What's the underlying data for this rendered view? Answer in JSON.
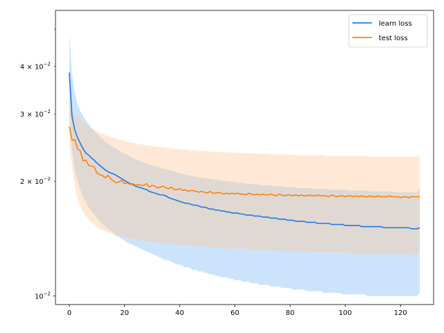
{
  "chart_data": {
    "type": "line",
    "title": "",
    "xlabel": "",
    "ylabel": "",
    "xlim": [
      -5,
      132
    ],
    "ylim": [
      0.0095,
      0.056
    ],
    "yscale": "log",
    "grid": false,
    "legend_position": "top-right",
    "x_ticks": [
      0,
      20,
      40,
      60,
      80,
      100,
      120
    ],
    "x_tick_labels": [
      "0",
      "20",
      "40",
      "60",
      "80",
      "100",
      "120"
    ],
    "y_major_ticks": [
      0.01
    ],
    "y_major_tick_labels": [
      {
        "base": "10",
        "exp": "−2",
        "coef": ""
      }
    ],
    "y_minor_ticks": [
      0.02,
      0.03,
      0.04,
      0.05
    ],
    "y_minor_tick_labels": [
      {
        "coef": "2",
        "base": "10",
        "exp": "−2"
      },
      {
        "coef": "3",
        "base": "10",
        "exp": "−2"
      },
      {
        "coef": "4",
        "base": "10",
        "exp": "−2"
      },
      {
        "coef": "",
        "base": "",
        "exp": ""
      }
    ],
    "x_start": 0,
    "x_step": 1,
    "series": [
      {
        "name": "learn loss",
        "color": "#1f77e4",
        "band_color": "#7fbcf4",
        "mean": [
          0.0385,
          0.0295,
          0.0272,
          0.026,
          0.0251,
          0.0243,
          0.0237,
          0.0234,
          0.023,
          0.0227,
          0.0223,
          0.022,
          0.0217,
          0.0214,
          0.0212,
          0.021,
          0.0209,
          0.0207,
          0.0205,
          0.0203,
          0.0201,
          0.0199,
          0.0197,
          0.0196,
          0.0194,
          0.0193,
          0.0192,
          0.0191,
          0.019,
          0.0188,
          0.0187,
          0.0186,
          0.0185,
          0.0184,
          0.0184,
          0.0183,
          0.0181,
          0.018,
          0.0179,
          0.0178,
          0.0177,
          0.0176,
          0.0175,
          0.0175,
          0.0174,
          0.0173,
          0.0173,
          0.0172,
          0.0171,
          0.0171,
          0.017,
          0.0169,
          0.0169,
          0.0168,
          0.0168,
          0.0167,
          0.0167,
          0.0166,
          0.0166,
          0.0165,
          0.0165,
          0.0165,
          0.0164,
          0.0164,
          0.0163,
          0.0163,
          0.0163,
          0.0162,
          0.0162,
          0.0162,
          0.0161,
          0.0161,
          0.0161,
          0.016,
          0.016,
          0.016,
          0.0159,
          0.0159,
          0.0159,
          0.0158,
          0.0158,
          0.0158,
          0.0157,
          0.0157,
          0.0157,
          0.0157,
          0.0156,
          0.0156,
          0.0156,
          0.0156,
          0.0155,
          0.0155,
          0.0155,
          0.0155,
          0.0155,
          0.0154,
          0.0154,
          0.0154,
          0.0154,
          0.0154,
          0.0153,
          0.0153,
          0.0153,
          0.0153,
          0.0153,
          0.0153,
          0.0152,
          0.0152,
          0.0152,
          0.0152,
          0.0152,
          0.0152,
          0.0152,
          0.0152,
          0.0151,
          0.0151,
          0.0151,
          0.0151,
          0.0151,
          0.0151,
          0.0151,
          0.0151,
          0.0151,
          0.0151,
          0.015,
          0.015,
          0.015,
          0.0151
        ],
        "upper": [
          0.049,
          0.038,
          0.034,
          0.0318,
          0.0305,
          0.0296,
          0.0288,
          0.0282,
          0.0276,
          0.0271,
          0.0266,
          0.0262,
          0.0258,
          0.0254,
          0.0251,
          0.0248,
          0.0246,
          0.0243,
          0.0241,
          0.0238,
          0.0236,
          0.0234,
          0.0232,
          0.023,
          0.0228,
          0.0227,
          0.0225,
          0.0224,
          0.0223,
          0.0221,
          0.022,
          0.0219,
          0.0218,
          0.0217,
          0.0216,
          0.0215,
          0.0214,
          0.0213,
          0.0212,
          0.0211,
          0.021,
          0.0209,
          0.0208,
          0.0207,
          0.0207,
          0.0206,
          0.0205,
          0.0205,
          0.0204,
          0.0204,
          0.0203,
          0.0203,
          0.0202,
          0.0202,
          0.0201,
          0.0201,
          0.02,
          0.02,
          0.0199,
          0.0199,
          0.0199,
          0.0198,
          0.0198,
          0.0198,
          0.0197,
          0.0197,
          0.0197,
          0.0196,
          0.0196,
          0.0196,
          0.0195,
          0.0195,
          0.0195,
          0.0195,
          0.0194,
          0.0194,
          0.0194,
          0.0194,
          0.0193,
          0.0193,
          0.0193,
          0.0193,
          0.0193,
          0.0192,
          0.0192,
          0.0192,
          0.0192,
          0.0192,
          0.0191,
          0.0191,
          0.0191,
          0.0191,
          0.0191,
          0.0191,
          0.019,
          0.019,
          0.019,
          0.019,
          0.019,
          0.019,
          0.019,
          0.0189,
          0.0189,
          0.0189,
          0.0189,
          0.0189,
          0.0189,
          0.0189,
          0.0189,
          0.0188,
          0.0188,
          0.0188,
          0.0188,
          0.0188,
          0.0188,
          0.0188,
          0.0188,
          0.0188,
          0.0187,
          0.0187,
          0.0187,
          0.0187,
          0.0187,
          0.0187,
          0.0187,
          0.0187,
          0.0187,
          0.0192
        ],
        "lower": [
          0.03,
          0.0238,
          0.0214,
          0.02,
          0.019,
          0.0182,
          0.0176,
          0.0171,
          0.0167,
          0.0164,
          0.016,
          0.0157,
          0.0155,
          0.0152,
          0.015,
          0.0148,
          0.0146,
          0.0144,
          0.0143,
          0.0141,
          0.014,
          0.0138,
          0.0137,
          0.0136,
          0.0135,
          0.0134,
          0.0133,
          0.0132,
          0.0131,
          0.013,
          0.0129,
          0.0128,
          0.0127,
          0.0126,
          0.0125,
          0.0124,
          0.0124,
          0.0123,
          0.0122,
          0.0121,
          0.0121,
          0.012,
          0.0119,
          0.0119,
          0.0118,
          0.0117,
          0.0117,
          0.0116,
          0.0116,
          0.0115,
          0.0115,
          0.0114,
          0.0114,
          0.0113,
          0.0113,
          0.0112,
          0.0112,
          0.0112,
          0.0111,
          0.0111,
          0.011,
          0.011,
          0.011,
          0.0109,
          0.0109,
          0.0109,
          0.0108,
          0.0108,
          0.0108,
          0.0107,
          0.0107,
          0.0107,
          0.0107,
          0.0106,
          0.0106,
          0.0106,
          0.0106,
          0.0105,
          0.0105,
          0.0105,
          0.0105,
          0.0104,
          0.0104,
          0.0104,
          0.0104,
          0.0104,
          0.0103,
          0.0103,
          0.0103,
          0.0103,
          0.0103,
          0.0103,
          0.0102,
          0.0102,
          0.0102,
          0.0102,
          0.0102,
          0.0102,
          0.0102,
          0.0101,
          0.0101,
          0.0101,
          0.0101,
          0.0101,
          0.0101,
          0.0101,
          0.0101,
          0.0101,
          0.01,
          0.01,
          0.01,
          0.01,
          0.01,
          0.01,
          0.01,
          0.01,
          0.01,
          0.01,
          0.01,
          0.01,
          0.01,
          0.01,
          0.01,
          0.01,
          0.01,
          0.01,
          0.01,
          0.0102
        ]
      },
      {
        "name": "test loss",
        "color": "#ff7f0e",
        "band_color": "#ffc999",
        "mean": [
          0.0278,
          0.0256,
          0.0257,
          0.0243,
          0.024,
          0.0226,
          0.0227,
          0.022,
          0.0219,
          0.0218,
          0.021,
          0.0208,
          0.0207,
          0.0204,
          0.0207,
          0.0203,
          0.02,
          0.0198,
          0.0199,
          0.0201,
          0.0197,
          0.0198,
          0.0196,
          0.0197,
          0.0195,
          0.0196,
          0.0195,
          0.0195,
          0.0197,
          0.0193,
          0.0195,
          0.0194,
          0.0192,
          0.0193,
          0.0194,
          0.0192,
          0.0191,
          0.0193,
          0.019,
          0.019,
          0.0191,
          0.0189,
          0.019,
          0.0188,
          0.0189,
          0.0189,
          0.0188,
          0.0187,
          0.0188,
          0.0187,
          0.0186,
          0.0188,
          0.0186,
          0.0186,
          0.0187,
          0.0186,
          0.0185,
          0.0186,
          0.0185,
          0.0186,
          0.0185,
          0.0186,
          0.0185,
          0.0185,
          0.0184,
          0.0186,
          0.0185,
          0.0184,
          0.0185,
          0.0184,
          0.0185,
          0.0184,
          0.0184,
          0.0185,
          0.0184,
          0.0183,
          0.0185,
          0.0184,
          0.0183,
          0.0184,
          0.0184,
          0.0183,
          0.0184,
          0.0183,
          0.0184,
          0.0183,
          0.0183,
          0.0184,
          0.0183,
          0.0183,
          0.0184,
          0.0183,
          0.0183,
          0.0183,
          0.0182,
          0.0184,
          0.0183,
          0.0182,
          0.0183,
          0.0183,
          0.0182,
          0.0183,
          0.0183,
          0.0182,
          0.0183,
          0.0182,
          0.0183,
          0.0182,
          0.0182,
          0.0183,
          0.0182,
          0.0182,
          0.0183,
          0.0182,
          0.0182,
          0.0182,
          0.0183,
          0.0182,
          0.0182,
          0.0182,
          0.0181,
          0.0182,
          0.0182,
          0.0181,
          0.0182,
          0.0182,
          0.0182,
          0.0182
        ],
        "upper": [
          0.032,
          0.0305,
          0.03,
          0.0295,
          0.0292,
          0.0285,
          0.0282,
          0.0278,
          0.0275,
          0.0273,
          0.027,
          0.0268,
          0.0266,
          0.0264,
          0.0263,
          0.0261,
          0.026,
          0.0258,
          0.0257,
          0.0256,
          0.0255,
          0.0254,
          0.0253,
          0.0252,
          0.0251,
          0.025,
          0.025,
          0.0249,
          0.0248,
          0.0248,
          0.0247,
          0.0247,
          0.0246,
          0.0246,
          0.0245,
          0.0245,
          0.0244,
          0.0244,
          0.0243,
          0.0243,
          0.0243,
          0.0242,
          0.0242,
          0.0242,
          0.0241,
          0.0241,
          0.0241,
          0.024,
          0.024,
          0.024,
          0.024,
          0.0239,
          0.0239,
          0.0239,
          0.0239,
          0.0238,
          0.0238,
          0.0238,
          0.0238,
          0.0238,
          0.0237,
          0.0237,
          0.0237,
          0.0237,
          0.0237,
          0.0237,
          0.0236,
          0.0236,
          0.0236,
          0.0236,
          0.0236,
          0.0236,
          0.0236,
          0.0235,
          0.0235,
          0.0235,
          0.0235,
          0.0235,
          0.0235,
          0.0235,
          0.0235,
          0.0235,
          0.0234,
          0.0234,
          0.0234,
          0.0234,
          0.0234,
          0.0234,
          0.0234,
          0.0234,
          0.0234,
          0.0234,
          0.0234,
          0.0233,
          0.0233,
          0.0233,
          0.0233,
          0.0233,
          0.0233,
          0.0233,
          0.0233,
          0.0233,
          0.0233,
          0.0233,
          0.0233,
          0.0233,
          0.0233,
          0.0233,
          0.0233,
          0.0232,
          0.0232,
          0.0232,
          0.0232,
          0.0232,
          0.0232,
          0.0232,
          0.0232,
          0.0232,
          0.0232,
          0.0232,
          0.0232,
          0.0232,
          0.0232,
          0.0232,
          0.0232,
          0.0232,
          0.0232,
          0.0235
        ],
        "lower": [
          0.0248,
          0.0218,
          0.0195,
          0.018,
          0.0172,
          0.0166,
          0.0162,
          0.0158,
          0.0156,
          0.0154,
          0.0152,
          0.015,
          0.0149,
          0.0148,
          0.0147,
          0.0146,
          0.0145,
          0.0144,
          0.0144,
          0.0143,
          0.0143,
          0.0142,
          0.0142,
          0.0141,
          0.0141,
          0.014,
          0.014,
          0.014,
          0.0139,
          0.0139,
          0.0139,
          0.0138,
          0.0138,
          0.0138,
          0.0138,
          0.0137,
          0.0137,
          0.0137,
          0.0137,
          0.0136,
          0.0136,
          0.0136,
          0.0136,
          0.0136,
          0.0135,
          0.0135,
          0.0135,
          0.0135,
          0.0135,
          0.0135,
          0.0134,
          0.0134,
          0.0134,
          0.0134,
          0.0134,
          0.0134,
          0.0134,
          0.0133,
          0.0133,
          0.0133,
          0.0133,
          0.0133,
          0.0133,
          0.0133,
          0.0133,
          0.0132,
          0.0132,
          0.0132,
          0.0132,
          0.0132,
          0.0132,
          0.0132,
          0.0132,
          0.0132,
          0.0132,
          0.0131,
          0.0131,
          0.0131,
          0.0131,
          0.0131,
          0.0131,
          0.0131,
          0.0131,
          0.0131,
          0.0131,
          0.0131,
          0.0131,
          0.013,
          0.013,
          0.013,
          0.013,
          0.013,
          0.013,
          0.013,
          0.013,
          0.013,
          0.013,
          0.013,
          0.013,
          0.013,
          0.013,
          0.013,
          0.0129,
          0.0129,
          0.0129,
          0.0129,
          0.0129,
          0.0129,
          0.0129,
          0.0129,
          0.0129,
          0.0129,
          0.0129,
          0.0129,
          0.0129,
          0.0129,
          0.0129,
          0.0129,
          0.0129,
          0.0129,
          0.0129,
          0.0129,
          0.0129,
          0.0128,
          0.0128,
          0.0128,
          0.0128,
          0.0132
        ]
      }
    ]
  }
}
